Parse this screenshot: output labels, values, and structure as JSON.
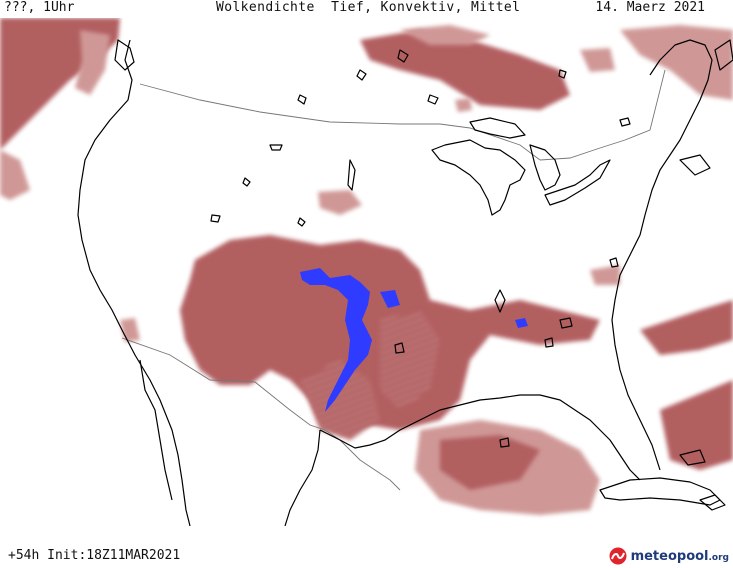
{
  "header": {
    "left": "???, 1Uhr",
    "center": "Wolkendichte  Tief, Konvektiv, Mittel",
    "right": "14. Maerz 2021"
  },
  "footer": {
    "run": "+54h Init:18Z11MAR2021",
    "brand": "meteopool",
    "brand_suffix": ".org"
  },
  "colors": {
    "cloud_dense": "#a8484b",
    "cloud_light": "#c98a88",
    "convective": "#2f3cff",
    "coastline": "#000000",
    "border": "#777777",
    "brand_red": "#e0242e",
    "brand_blue": "#1f3b7a"
  },
  "icons": [
    "meteopool-logo-icon"
  ]
}
